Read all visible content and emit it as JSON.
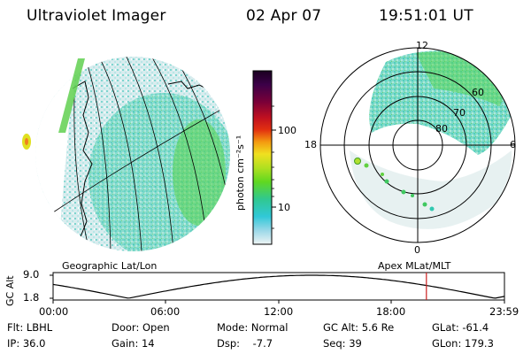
{
  "header": {
    "instrument": "Ultraviolet Imager",
    "date": "02 Apr 07",
    "time": "19:51:01 UT"
  },
  "left_panel": {
    "caption": "Geographic Lat/Lon"
  },
  "colorbar": {
    "unit_label": "photon cm⁻²s⁻¹",
    "ticks": [
      "100",
      "10"
    ],
    "colors": [
      "#1a0020",
      "#3c0048",
      "#7a0038",
      "#b00018",
      "#e21010",
      "#f04a10",
      "#f6a010",
      "#f0e020",
      "#b0e020",
      "#60d820",
      "#30c890",
      "#30c8d8",
      "#8ad8e8",
      "#c8eaee",
      "#e8f2f2"
    ]
  },
  "right_panel": {
    "caption": "Apex MLat/MLT",
    "mlt_labels": {
      "top": "12",
      "right": "6",
      "bottom": "0",
      "left": "18"
    },
    "lat_labels": [
      "60",
      "70",
      "80"
    ]
  },
  "timeline": {
    "ylabel": "GC Alt",
    "y_ticks": [
      "9.0",
      "1.8"
    ],
    "x_ticks": [
      "00:00",
      "06:00",
      "12:00",
      "18:00",
      "23:59"
    ],
    "marker_time": "19:51",
    "marker_color": "#cc2020"
  },
  "status": {
    "flt": "Flt: LBHL",
    "ip": "IP: 36.0",
    "door": "Door: Open",
    "gain": "Gain: 14",
    "mode": "Mode: Normal",
    "dsp": "Dsp:    -7.7",
    "gcalt": "GC Alt: 5.6 Re",
    "seq": "Seq: 39",
    "glat": "GLat: -61.4",
    "glon": "GLon: 179.3"
  }
}
